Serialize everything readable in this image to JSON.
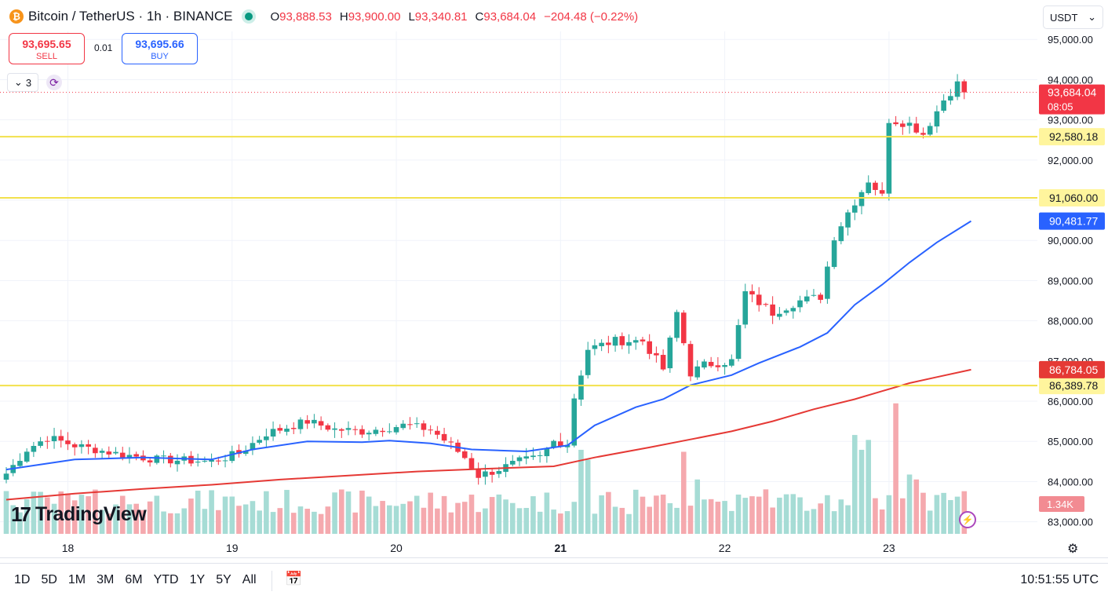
{
  "header": {
    "symbol": "Bitcoin / TetherUS · 1h · BINANCE",
    "coin_glyph": "₿",
    "ohlc": {
      "o_label": "O",
      "o_value": "93,888.53",
      "h_label": "H",
      "h_value": "93,900.00",
      "l_label": "L",
      "l_value": "93,340.81",
      "c_label": "C",
      "c_value": "93,684.04",
      "change": "−204.48 (−0.22%)"
    }
  },
  "trade": {
    "sell_price": "93,695.65",
    "sell_label": "SELL",
    "spread": "0.01",
    "buy_price": "93,695.66",
    "buy_label": "BUY"
  },
  "indicators": {
    "count": "3"
  },
  "currency": {
    "selected": "USDT"
  },
  "branding": {
    "logo_text": "TradingView"
  },
  "bottom": {
    "periods": [
      "1D",
      "5D",
      "1M",
      "3M",
      "6M",
      "YTD",
      "1Y",
      "5Y",
      "All"
    ],
    "clock": "10:51:55 UTC"
  },
  "colors": {
    "up": "#26a69a",
    "down": "#f23645",
    "ma_fast": "#2962ff",
    "ma_slow": "#e53935",
    "level": "#f5e050"
  },
  "chart_data": {
    "type": "candlestick",
    "timeframe": "1h",
    "y_ticks": [
      83000,
      84000,
      85000,
      86000,
      87000,
      88000,
      89000,
      90000,
      91000,
      92000,
      93000,
      94000,
      95000
    ],
    "y_tick_labels": [
      "83,000.00",
      "84,000.00",
      "85,000.00",
      "86,000.00",
      "87,000.00",
      "88,000.00",
      "89,000.00",
      "90,000.00",
      "91,000.00",
      "92,000.00",
      "93,000.00",
      "94,000.00",
      "95,000.00"
    ],
    "ylim": [
      82700,
      95200
    ],
    "x_labels": [
      {
        "label": "18",
        "index": 9
      },
      {
        "label": "19",
        "index": 33
      },
      {
        "label": "20",
        "index": 57
      },
      {
        "label": "21",
        "index": 81
      },
      {
        "label": "22",
        "index": 105
      },
      {
        "label": "23",
        "index": 129
      }
    ],
    "candle_count": 141,
    "waypoints": [
      [
        0,
        84200
      ],
      [
        3,
        84800
      ],
      [
        6,
        85100
      ],
      [
        10,
        84900
      ],
      [
        16,
        84700
      ],
      [
        22,
        84550
      ],
      [
        30,
        84500
      ],
      [
        34,
        84700
      ],
      [
        38,
        85200
      ],
      [
        44,
        85500
      ],
      [
        48,
        85300
      ],
      [
        52,
        85250
      ],
      [
        58,
        85400
      ],
      [
        62,
        85300
      ],
      [
        65,
        84900
      ],
      [
        67,
        84600
      ],
      [
        69,
        84150
      ],
      [
        71,
        84250
      ],
      [
        75,
        84500
      ],
      [
        78,
        84600
      ],
      [
        80,
        85000
      ],
      [
        82,
        84950
      ],
      [
        83,
        86100
      ],
      [
        85,
        87300
      ],
      [
        89,
        87500
      ],
      [
        93,
        87500
      ],
      [
        96,
        86800
      ],
      [
        98,
        88200
      ],
      [
        100,
        86700
      ],
      [
        102,
        86900
      ],
      [
        106,
        87000
      ],
      [
        108,
        88700
      ],
      [
        112,
        88200
      ],
      [
        116,
        88500
      ],
      [
        119,
        88600
      ],
      [
        121,
        90100
      ],
      [
        123,
        90700
      ],
      [
        126,
        91500
      ],
      [
        128,
        91100
      ],
      [
        129,
        93000
      ],
      [
        132,
        92900
      ],
      [
        134,
        92650
      ],
      [
        137,
        93500
      ],
      [
        140,
        94100
      ],
      [
        141,
        93684
      ]
    ],
    "current_price": "93,684.04",
    "countdown": "08:05",
    "levels": [
      {
        "value": 92580.18,
        "label": "92,580.18"
      },
      {
        "value": 91060.0,
        "label": "91,060.00"
      },
      {
        "value": 86389.78,
        "label": "86,389.78"
      }
    ],
    "ma_fast": {
      "last_label": "90,481.77",
      "points": [
        [
          0,
          84300
        ],
        [
          10,
          84550
        ],
        [
          20,
          84600
        ],
        [
          30,
          84550
        ],
        [
          36,
          84800
        ],
        [
          44,
          85000
        ],
        [
          52,
          84980
        ],
        [
          56,
          85020
        ],
        [
          62,
          84950
        ],
        [
          68,
          84800
        ],
        [
          76,
          84750
        ],
        [
          82,
          84900
        ],
        [
          86,
          85400
        ],
        [
          92,
          85850
        ],
        [
          96,
          86050
        ],
        [
          100,
          86400
        ],
        [
          106,
          86650
        ],
        [
          110,
          86950
        ],
        [
          116,
          87350
        ],
        [
          120,
          87700
        ],
        [
          124,
          88400
        ],
        [
          128,
          88900
        ],
        [
          132,
          89450
        ],
        [
          136,
          89950
        ],
        [
          141,
          90481.77
        ]
      ]
    },
    "ma_slow": {
      "last_label": "86,784.05",
      "points": [
        [
          0,
          83550
        ],
        [
          10,
          83700
        ],
        [
          20,
          83820
        ],
        [
          30,
          83920
        ],
        [
          40,
          84050
        ],
        [
          50,
          84150
        ],
        [
          60,
          84250
        ],
        [
          70,
          84320
        ],
        [
          80,
          84380
        ],
        [
          86,
          84600
        ],
        [
          94,
          84850
        ],
        [
          100,
          85050
        ],
        [
          106,
          85250
        ],
        [
          112,
          85500
        ],
        [
          118,
          85800
        ],
        [
          124,
          86050
        ],
        [
          128,
          86250
        ],
        [
          132,
          86450
        ],
        [
          136,
          86600
        ],
        [
          141,
          86784.05
        ]
      ]
    },
    "volume": {
      "last_label": "1.34K",
      "peaks": [
        {
          "index": 84,
          "value": 0.85
        },
        {
          "index": 85,
          "value": 0.75
        },
        {
          "index": 99,
          "value": 0.83
        },
        {
          "index": 101,
          "value": 0.55
        },
        {
          "index": 111,
          "value": 0.45
        },
        {
          "index": 124,
          "value": 1.0
        },
        {
          "index": 125,
          "value": 0.85
        },
        {
          "index": 126,
          "value": 0.95
        },
        {
          "index": 130,
          "value": 1.32
        },
        {
          "index": 132,
          "value": 0.6
        },
        {
          "index": 133,
          "value": 0.55
        }
      ],
      "baseline": 0.2
    }
  }
}
